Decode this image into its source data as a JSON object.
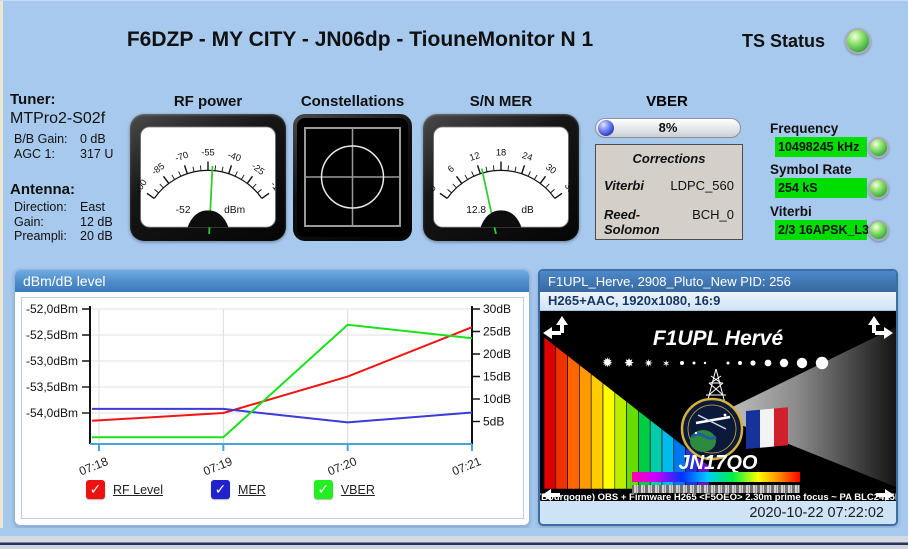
{
  "window": {
    "title": "F6DZP - MY CITY - JN06dp - TiouneMonitor N 1",
    "ts_status_label": "TS Status"
  },
  "icons": {
    "check": "✓"
  },
  "tuner": {
    "heading": "Tuner:",
    "model": "MTPro2-S02f",
    "rows": [
      {
        "label": "B/B Gain:",
        "value": "0 dB"
      },
      {
        "label": "AGC 1:",
        "value": "317 U"
      }
    ]
  },
  "antenna": {
    "heading": "Antenna:",
    "rows": [
      {
        "label": "Direction:",
        "value": "East"
      },
      {
        "label": "Gain:",
        "value": "12 dB"
      },
      {
        "label": "Preampli:",
        "value": "20 dB"
      }
    ]
  },
  "meters": {
    "rf": {
      "title": "RF power",
      "value": "-52",
      "unit": "dBm",
      "min": -100,
      "max": -10,
      "minor_step": 5,
      "major_step": 15,
      "ticks": [
        -100,
        -85,
        -70,
        -55,
        -40,
        -25,
        -10
      ],
      "needle_value": -52
    },
    "constellation": {
      "title": "Constellations"
    },
    "mer": {
      "title": "S/N MER",
      "value": "12.8",
      "unit": "dB",
      "min": 0,
      "max": 36,
      "minor_step": 2,
      "major_step": 6,
      "ticks": [
        0,
        6,
        12,
        18,
        24,
        30,
        36
      ],
      "needle_value": 12.8
    }
  },
  "vber": {
    "title": "VBER",
    "percent": "8%",
    "percent_value": 8
  },
  "corrections": {
    "title": "Corrections",
    "rows": [
      {
        "label": "Viterbi",
        "value": "LDPC_560"
      },
      {
        "label": "Reed-Solomon",
        "value": "BCH_0"
      }
    ]
  },
  "signal_fields": [
    {
      "label": "Frequency",
      "value": "10498245 kHz"
    },
    {
      "label": "Symbol Rate",
      "value": "254 kS"
    },
    {
      "label": "Viterbi",
      "value": "2/3 16APSK_L3"
    }
  ],
  "chart_data": {
    "type": "line",
    "title": "dBm/dB level",
    "x": [
      "07:18",
      "07:19",
      "07:20",
      "07:21"
    ],
    "left_axis": {
      "unit": "dBm",
      "tick_labels": [
        "-52,0dBm",
        "-52,5dBm",
        "-53,0dBm",
        "-53,5dBm",
        "-54,0dBm"
      ],
      "tick_values": [
        -52.0,
        -52.5,
        -53.0,
        -53.5,
        -54.0
      ],
      "range": [
        -54.6,
        -52.0
      ]
    },
    "right_axis": {
      "unit": "dB",
      "tick_labels": [
        "30dB",
        "25dB",
        "20dB",
        "15dB",
        "10dB",
        "5dB"
      ],
      "tick_values": [
        30,
        25,
        20,
        15,
        10,
        5
      ],
      "range": [
        0,
        30
      ]
    },
    "grid": true,
    "legend_position": "bottom",
    "series": [
      {
        "name": "RF Level",
        "color": "#f01515",
        "axis": "left",
        "values": [
          -54.15,
          -54.0,
          -53.3,
          -52.35
        ]
      },
      {
        "name": "MER",
        "color": "#3b3bd6",
        "axis": "right",
        "values": [
          7.8,
          7.8,
          4.8,
          7.0
        ]
      },
      {
        "name": "VBER",
        "color": "#1ae11a",
        "axis": "right",
        "values": [
          1.5,
          1.5,
          26.5,
          23.5
        ]
      }
    ],
    "legend": [
      {
        "label": "RF Level",
        "color": "#ee1111"
      },
      {
        "label": "MER",
        "color": "#2222cc"
      },
      {
        "label": "VBER",
        "color": "#22ee22"
      }
    ]
  },
  "video": {
    "header": "F1UPL_Herve, 2908_Pluto_New PID: 256",
    "subheader": "H265+AAC, 1920x1080, 16:9",
    "card": {
      "callsign": "F1UPL Hervé",
      "locator": "JN17QO",
      "caption": "ve 58 (Bourgogne) OBS + Firmware H265  <F5OEO> 2.30m prime focus ~ PA BLC2425M DLS"
    },
    "timestamp": "2020-10-22 07:22:02"
  }
}
